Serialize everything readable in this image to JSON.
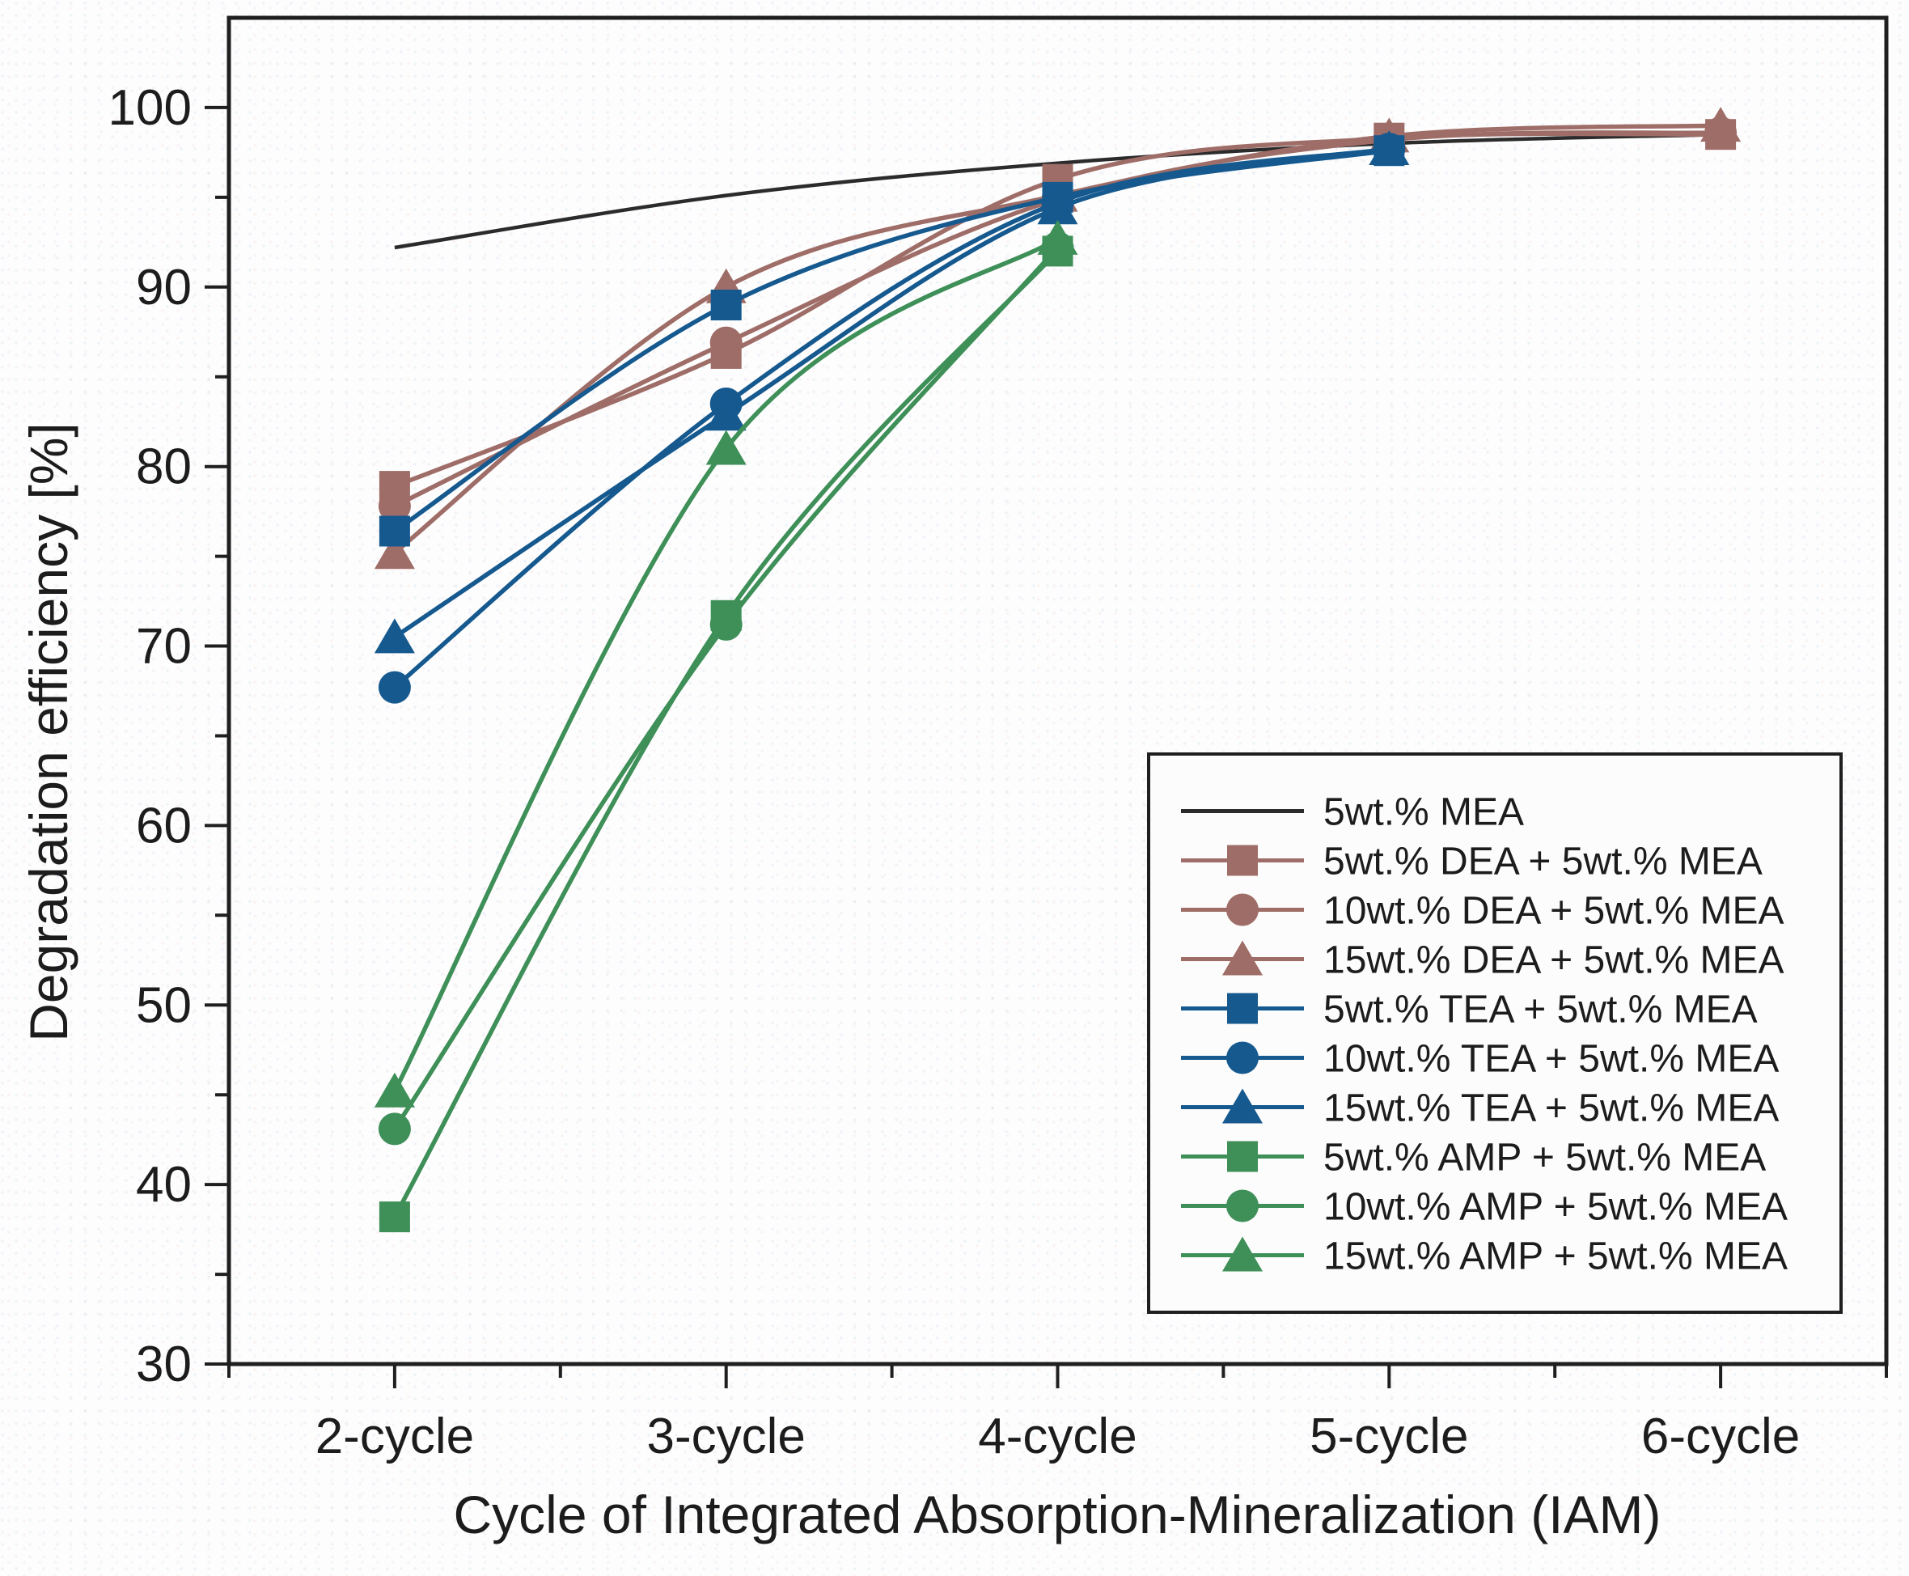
{
  "chart_data": {
    "type": "line",
    "title": "",
    "xlabel": "Cycle of Integrated Absorption-Mineralization (IAM)",
    "ylabel": "Degradation efficiency [%]",
    "xlim": [
      1.5,
      6.5
    ],
    "ylim": [
      30,
      105
    ],
    "grid": false,
    "legend_position": "lower-right",
    "axis_color": "#1f1f1f",
    "x_ticks": [
      {
        "value": 2,
        "label": "2-cycle"
      },
      {
        "value": 3,
        "label": "3-cycle"
      },
      {
        "value": 4,
        "label": "4-cycle"
      },
      {
        "value": 5,
        "label": "5-cycle"
      },
      {
        "value": 6,
        "label": "6-cycle"
      }
    ],
    "x_minor_ticks": [
      1.5,
      2.5,
      3.5,
      4.5,
      5.5,
      6.5
    ],
    "y_ticks": [
      30,
      40,
      50,
      60,
      70,
      80,
      90,
      100
    ],
    "y_minor_ticks": [
      35,
      45,
      55,
      65,
      75,
      85,
      95
    ],
    "series": [
      {
        "name": "5wt.% MEA",
        "color": "#2b2b2b",
        "marker": "none",
        "x": [
          2,
          3,
          4,
          5,
          6
        ],
        "values": [
          92.2,
          95.1,
          96.9,
          98.0,
          98.5
        ]
      },
      {
        "name": "5wt.% DEA + 5wt.% MEA",
        "color": "#9f6d67",
        "marker": "square",
        "x": [
          2,
          3,
          4,
          5,
          6
        ],
        "values": [
          78.9,
          86.3,
          96.0,
          98.3,
          98.5
        ]
      },
      {
        "name": "10wt.% DEA + 5wt.% MEA",
        "color": "#9f6d67",
        "marker": "circle",
        "x": [
          2,
          3,
          4,
          5,
          6
        ],
        "values": [
          77.8,
          86.9,
          94.9,
          98.2,
          98.6
        ]
      },
      {
        "name": "15wt.% DEA + 5wt.% MEA",
        "color": "#9f6d67",
        "marker": "triangle",
        "x": [
          2,
          3,
          4,
          5,
          6
        ],
        "values": [
          75.2,
          90.0,
          95.1,
          98.4,
          99.0
        ]
      },
      {
        "name": "5wt.% TEA + 5wt.% MEA",
        "color": "#15598f",
        "marker": "square",
        "x": [
          2,
          3,
          4,
          5
        ],
        "values": [
          76.4,
          89.0,
          95.0,
          97.6
        ]
      },
      {
        "name": "10wt.% TEA + 5wt.% MEA",
        "color": "#15598f",
        "marker": "circle",
        "x": [
          2,
          3,
          4,
          5
        ],
        "values": [
          67.7,
          83.5,
          94.7,
          97.7
        ]
      },
      {
        "name": "15wt.% TEA + 5wt.% MEA",
        "color": "#15598f",
        "marker": "triangle",
        "x": [
          2,
          3,
          4,
          5
        ],
        "values": [
          70.5,
          82.9,
          94.4,
          97.7
        ]
      },
      {
        "name": "5wt.% AMP + 5wt.% MEA",
        "color": "#3e8f58",
        "marker": "square",
        "x": [
          2,
          3,
          4
        ],
        "values": [
          38.2,
          71.7,
          92.0
        ]
      },
      {
        "name": "10wt.% AMP + 5wt.% MEA",
        "color": "#3e8f58",
        "marker": "circle",
        "x": [
          2,
          3,
          4
        ],
        "values": [
          43.1,
          71.2,
          92.2
        ]
      },
      {
        "name": "15wt.% AMP + 5wt.% MEA",
        "color": "#3e8f58",
        "marker": "triangle",
        "x": [
          2,
          3,
          4
        ],
        "values": [
          45.2,
          81.0,
          92.7
        ]
      }
    ]
  }
}
